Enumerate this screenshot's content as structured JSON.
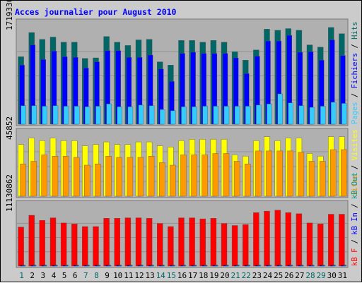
{
  "chart_data": {
    "type": "bar",
    "title": "Acces journalier pour August 2010",
    "days": [
      "1",
      "2",
      "3",
      "4",
      "5",
      "6",
      "7",
      "8",
      "9",
      "10",
      "11",
      "12",
      "13",
      "14",
      "15",
      "16",
      "17",
      "18",
      "19",
      "20",
      "21",
      "22",
      "23",
      "24",
      "25",
      "26",
      "27",
      "28",
      "29",
      "30",
      "31"
    ],
    "weekend_days": [
      "1",
      "7",
      "8",
      "14",
      "15",
      "21",
      "22",
      "28",
      "29"
    ],
    "panels": [
      {
        "name": "traffic",
        "ymax": 1719330,
        "ymax_label": "1719330",
        "series": [
          {
            "name": "Pages",
            "color": "#33ccff",
            "values": [
              330000,
              330000,
              320000,
              330000,
              320000,
              320000,
              310000,
              320000,
              360000,
              310000,
              310000,
              340000,
              330000,
              260000,
              240000,
              310000,
              310000,
              320000,
              320000,
              320000,
              320000,
              320000,
              340000,
              360000,
              540000,
              380000,
              330000,
              300000,
              320000,
              390000,
              370000
            ]
          },
          {
            "name": "Fichiers",
            "color": "#0000ff",
            "values": [
              1050000,
              1410000,
              1150000,
              1300000,
              1200000,
              1190000,
              1000000,
              1110000,
              1310000,
              1310000,
              1190000,
              1190000,
              1230000,
              980000,
              760000,
              1260000,
              1280000,
              1260000,
              1260000,
              1260000,
              1180000,
              900000,
              1210000,
              1480000,
              1480000,
              1580000,
              1280000,
              1290000,
              1140000,
              1500000,
              1220000
            ]
          },
          {
            "name": "Hits",
            "color": "#006666",
            "values": [
              1200000,
              1630000,
              1510000,
              1550000,
              1460000,
              1460000,
              1170000,
              1180000,
              1560000,
              1460000,
              1400000,
              1500000,
              1510000,
              1110000,
              1050000,
              1490000,
              1490000,
              1460000,
              1490000,
              1460000,
              1290000,
              1140000,
              1320000,
              1690000,
              1670000,
              1700000,
              1670000,
              1410000,
              1370000,
              1720000,
              1610000
            ]
          }
        ]
      },
      {
        "name": "visits",
        "ymax": 45852,
        "ymax_label": "45852",
        "series": [
          {
            "name": "Sites",
            "color": "#ff9900",
            "values": [
              25000,
              27000,
              32000,
              31000,
              31000,
              30000,
              24000,
              25000,
              31000,
              30000,
              30000,
              30000,
              31000,
              26000,
              24000,
              32000,
              32000,
              32000,
              33000,
              33000,
              27000,
              25000,
              35000,
              35000,
              35000,
              35000,
              34000,
              27000,
              27000,
              36000,
              36000
            ]
          },
          {
            "name": "Visites",
            "color": "#ffff00",
            "values": [
              40000,
              45000,
              43000,
              45000,
              43000,
              43000,
              39000,
              40000,
              42000,
              40000,
              40000,
              42000,
              42000,
              39000,
              38000,
              43000,
              44000,
              44000,
              44000,
              44000,
              32000,
              31000,
              43000,
              46000,
              43000,
              45000,
              45000,
              33000,
              31000,
              46000,
              46000
            ]
          }
        ]
      },
      {
        "name": "bandwidth",
        "ymax": 11130862,
        "ymax_label": "11130862",
        "series": [
          {
            "name": "kB In",
            "color": "#0000ff",
            "values": [
              20000,
              60000,
              25000,
              35000,
              35000,
              20000,
              18000,
              55000,
              25000,
              25000,
              25000,
              30000,
              25000,
              22000,
              40000,
              35000,
              35000,
              35000,
              25000,
              35000,
              25000,
              35000,
              35000,
              25000,
              65000,
              35000,
              25000,
              30000,
              30000,
              60000,
              50000
            ]
          },
          {
            "name": "kB Out",
            "color": "#009999",
            "values": [
              0,
              0,
              0,
              0,
              0,
              0,
              0,
              0,
              0,
              0,
              0,
              0,
              0,
              0,
              0,
              0,
              0,
              0,
              0,
              0,
              0,
              0,
              0,
              0,
              0,
              0,
              0,
              0,
              0,
              0,
              0
            ]
          },
          {
            "name": "kB F",
            "color": "#ff0000",
            "values": [
              7600000,
              9900000,
              8900000,
              9400000,
              8400000,
              8200000,
              7700000,
              7700000,
              9300000,
              9300000,
              9400000,
              9400000,
              9300000,
              8300000,
              7700000,
              9400000,
              9400000,
              9200000,
              9300000,
              8300000,
              7900000,
              8100000,
              10400000,
              10700000,
              10900000,
              10400000,
              10200000,
              8400000,
              8200000,
              10100000,
              10100000
            ]
          }
        ]
      }
    ],
    "legend": [
      {
        "panel": "traffic",
        "parts": [
          {
            "text": "Pages",
            "color": "#33ccff"
          },
          {
            "text": " / ",
            "color": "#000000"
          },
          {
            "text": "Fichiers",
            "color": "#0000ff"
          },
          {
            "text": " / ",
            "color": "#000000"
          },
          {
            "text": "Hits",
            "color": "#006666"
          }
        ]
      },
      {
        "panel": "visits",
        "parts": [
          {
            "text": "Sites",
            "color": "#ff9900"
          },
          {
            "text": " / ",
            "color": "#000000"
          },
          {
            "text": "Visites",
            "color": "#ffff00"
          }
        ]
      },
      {
        "panel": "bandwidth",
        "parts": [
          {
            "text": "kB F",
            "color": "#ff0000"
          },
          {
            "text": " / ",
            "color": "#000000"
          },
          {
            "text": "kB In",
            "color": "#0000ff"
          },
          {
            "text": " / ",
            "color": "#000000"
          },
          {
            "text": "kB Out",
            "color": "#009999"
          }
        ]
      }
    ],
    "colors": {
      "title": "#0000ff",
      "weekday": "#000000",
      "weekend": "#006666",
      "panel_bg": "#b0b0b0",
      "grid": "#8a8a8a",
      "frame": "#cbcbcb"
    }
  }
}
